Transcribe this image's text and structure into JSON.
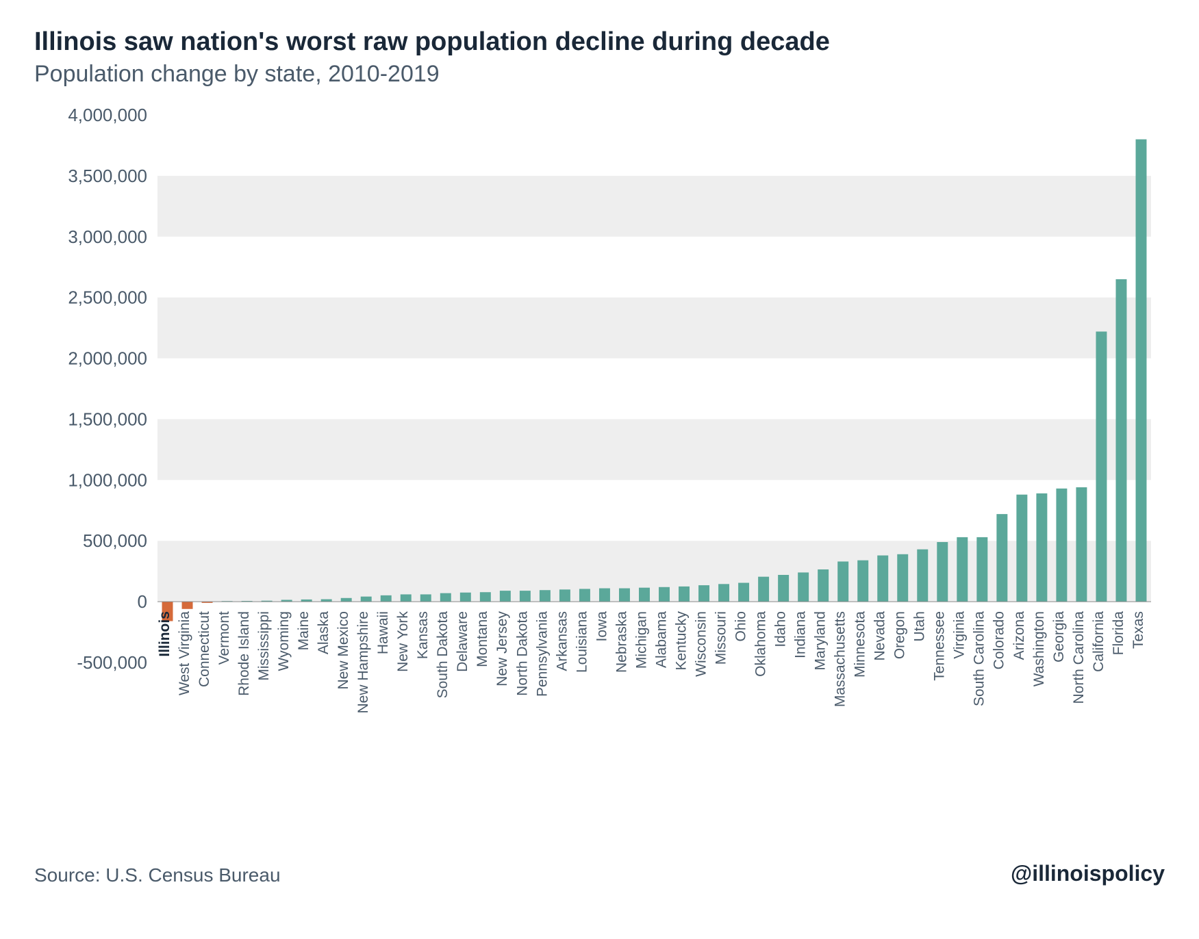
{
  "title": "Illinois saw nation's worst raw population decline during decade",
  "subtitle": "Population change by state, 2010-2019",
  "source_label": "Source: U.S. Census Bureau",
  "handle": "@illinoispolicy",
  "chart": {
    "type": "bar",
    "background_color": "#ffffff",
    "band_color": "#eeeeee",
    "axis_color": "#d0d0d0",
    "bar_positive_color": "#5ba89a",
    "bar_negative_color": "#d56a3a",
    "highlight_state": "Illinois",
    "title_fontsize": 38,
    "subtitle_fontsize": 34,
    "tick_fontsize": 26,
    "xlabel_fontsize": 21,
    "ylim": [
      -500000,
      4000000
    ],
    "ytick_step": 500000,
    "yticks": [
      -500000,
      0,
      500000,
      1000000,
      1500000,
      2000000,
      2500000,
      3000000,
      3500000,
      4000000
    ],
    "ytick_labels": [
      "-500,000",
      "0",
      "500,000",
      "1,000,000",
      "1,500,000",
      "2,000,000",
      "2,500,000",
      "3,000,000",
      "3,500,000",
      "4,000,000"
    ],
    "bars": [
      {
        "label": "Illinois",
        "value": -160000
      },
      {
        "label": "West Virginia",
        "value": -60000
      },
      {
        "label": "Connecticut",
        "value": -10000
      },
      {
        "label": "Vermont",
        "value": 5000
      },
      {
        "label": "Rhode Island",
        "value": 6000
      },
      {
        "label": "Mississippi",
        "value": 8000
      },
      {
        "label": "Wyoming",
        "value": 15000
      },
      {
        "label": "Maine",
        "value": 18000
      },
      {
        "label": "Alaska",
        "value": 20000
      },
      {
        "label": "New Mexico",
        "value": 30000
      },
      {
        "label": "New Hampshire",
        "value": 42000
      },
      {
        "label": "Hawaii",
        "value": 52000
      },
      {
        "label": "New York",
        "value": 60000
      },
      {
        "label": "Kansas",
        "value": 60000
      },
      {
        "label": "South Dakota",
        "value": 70000
      },
      {
        "label": "Delaware",
        "value": 75000
      },
      {
        "label": "Montana",
        "value": 78000
      },
      {
        "label": "New Jersey",
        "value": 90000
      },
      {
        "label": "North Dakota",
        "value": 90000
      },
      {
        "label": "Pennsylvania",
        "value": 95000
      },
      {
        "label": "Arkansas",
        "value": 100000
      },
      {
        "label": "Louisiana",
        "value": 105000
      },
      {
        "label": "Iowa",
        "value": 110000
      },
      {
        "label": "Nebraska",
        "value": 110000
      },
      {
        "label": "Michigan",
        "value": 115000
      },
      {
        "label": "Alabama",
        "value": 120000
      },
      {
        "label": "Kentucky",
        "value": 125000
      },
      {
        "label": "Wisconsin",
        "value": 135000
      },
      {
        "label": "Missouri",
        "value": 145000
      },
      {
        "label": "Ohio",
        "value": 155000
      },
      {
        "label": "Oklahoma",
        "value": 205000
      },
      {
        "label": "Idaho",
        "value": 220000
      },
      {
        "label": "Indiana",
        "value": 240000
      },
      {
        "label": "Maryland",
        "value": 265000
      },
      {
        "label": "Massachusetts",
        "value": 330000
      },
      {
        "label": "Minnesota",
        "value": 340000
      },
      {
        "label": "Nevada",
        "value": 380000
      },
      {
        "label": "Oregon",
        "value": 390000
      },
      {
        "label": "Utah",
        "value": 430000
      },
      {
        "label": "Tennessee",
        "value": 490000
      },
      {
        "label": "Virginia",
        "value": 530000
      },
      {
        "label": "South Carolina",
        "value": 530000
      },
      {
        "label": "Colorado",
        "value": 720000
      },
      {
        "label": "Arizona",
        "value": 880000
      },
      {
        "label": "Washington",
        "value": 890000
      },
      {
        "label": "Georgia",
        "value": 930000
      },
      {
        "label": "North Carolina",
        "value": 940000
      },
      {
        "label": "California",
        "value": 2220000
      },
      {
        "label": "Florida",
        "value": 2650000
      },
      {
        "label": "Texas",
        "value": 3800000
      }
    ]
  }
}
